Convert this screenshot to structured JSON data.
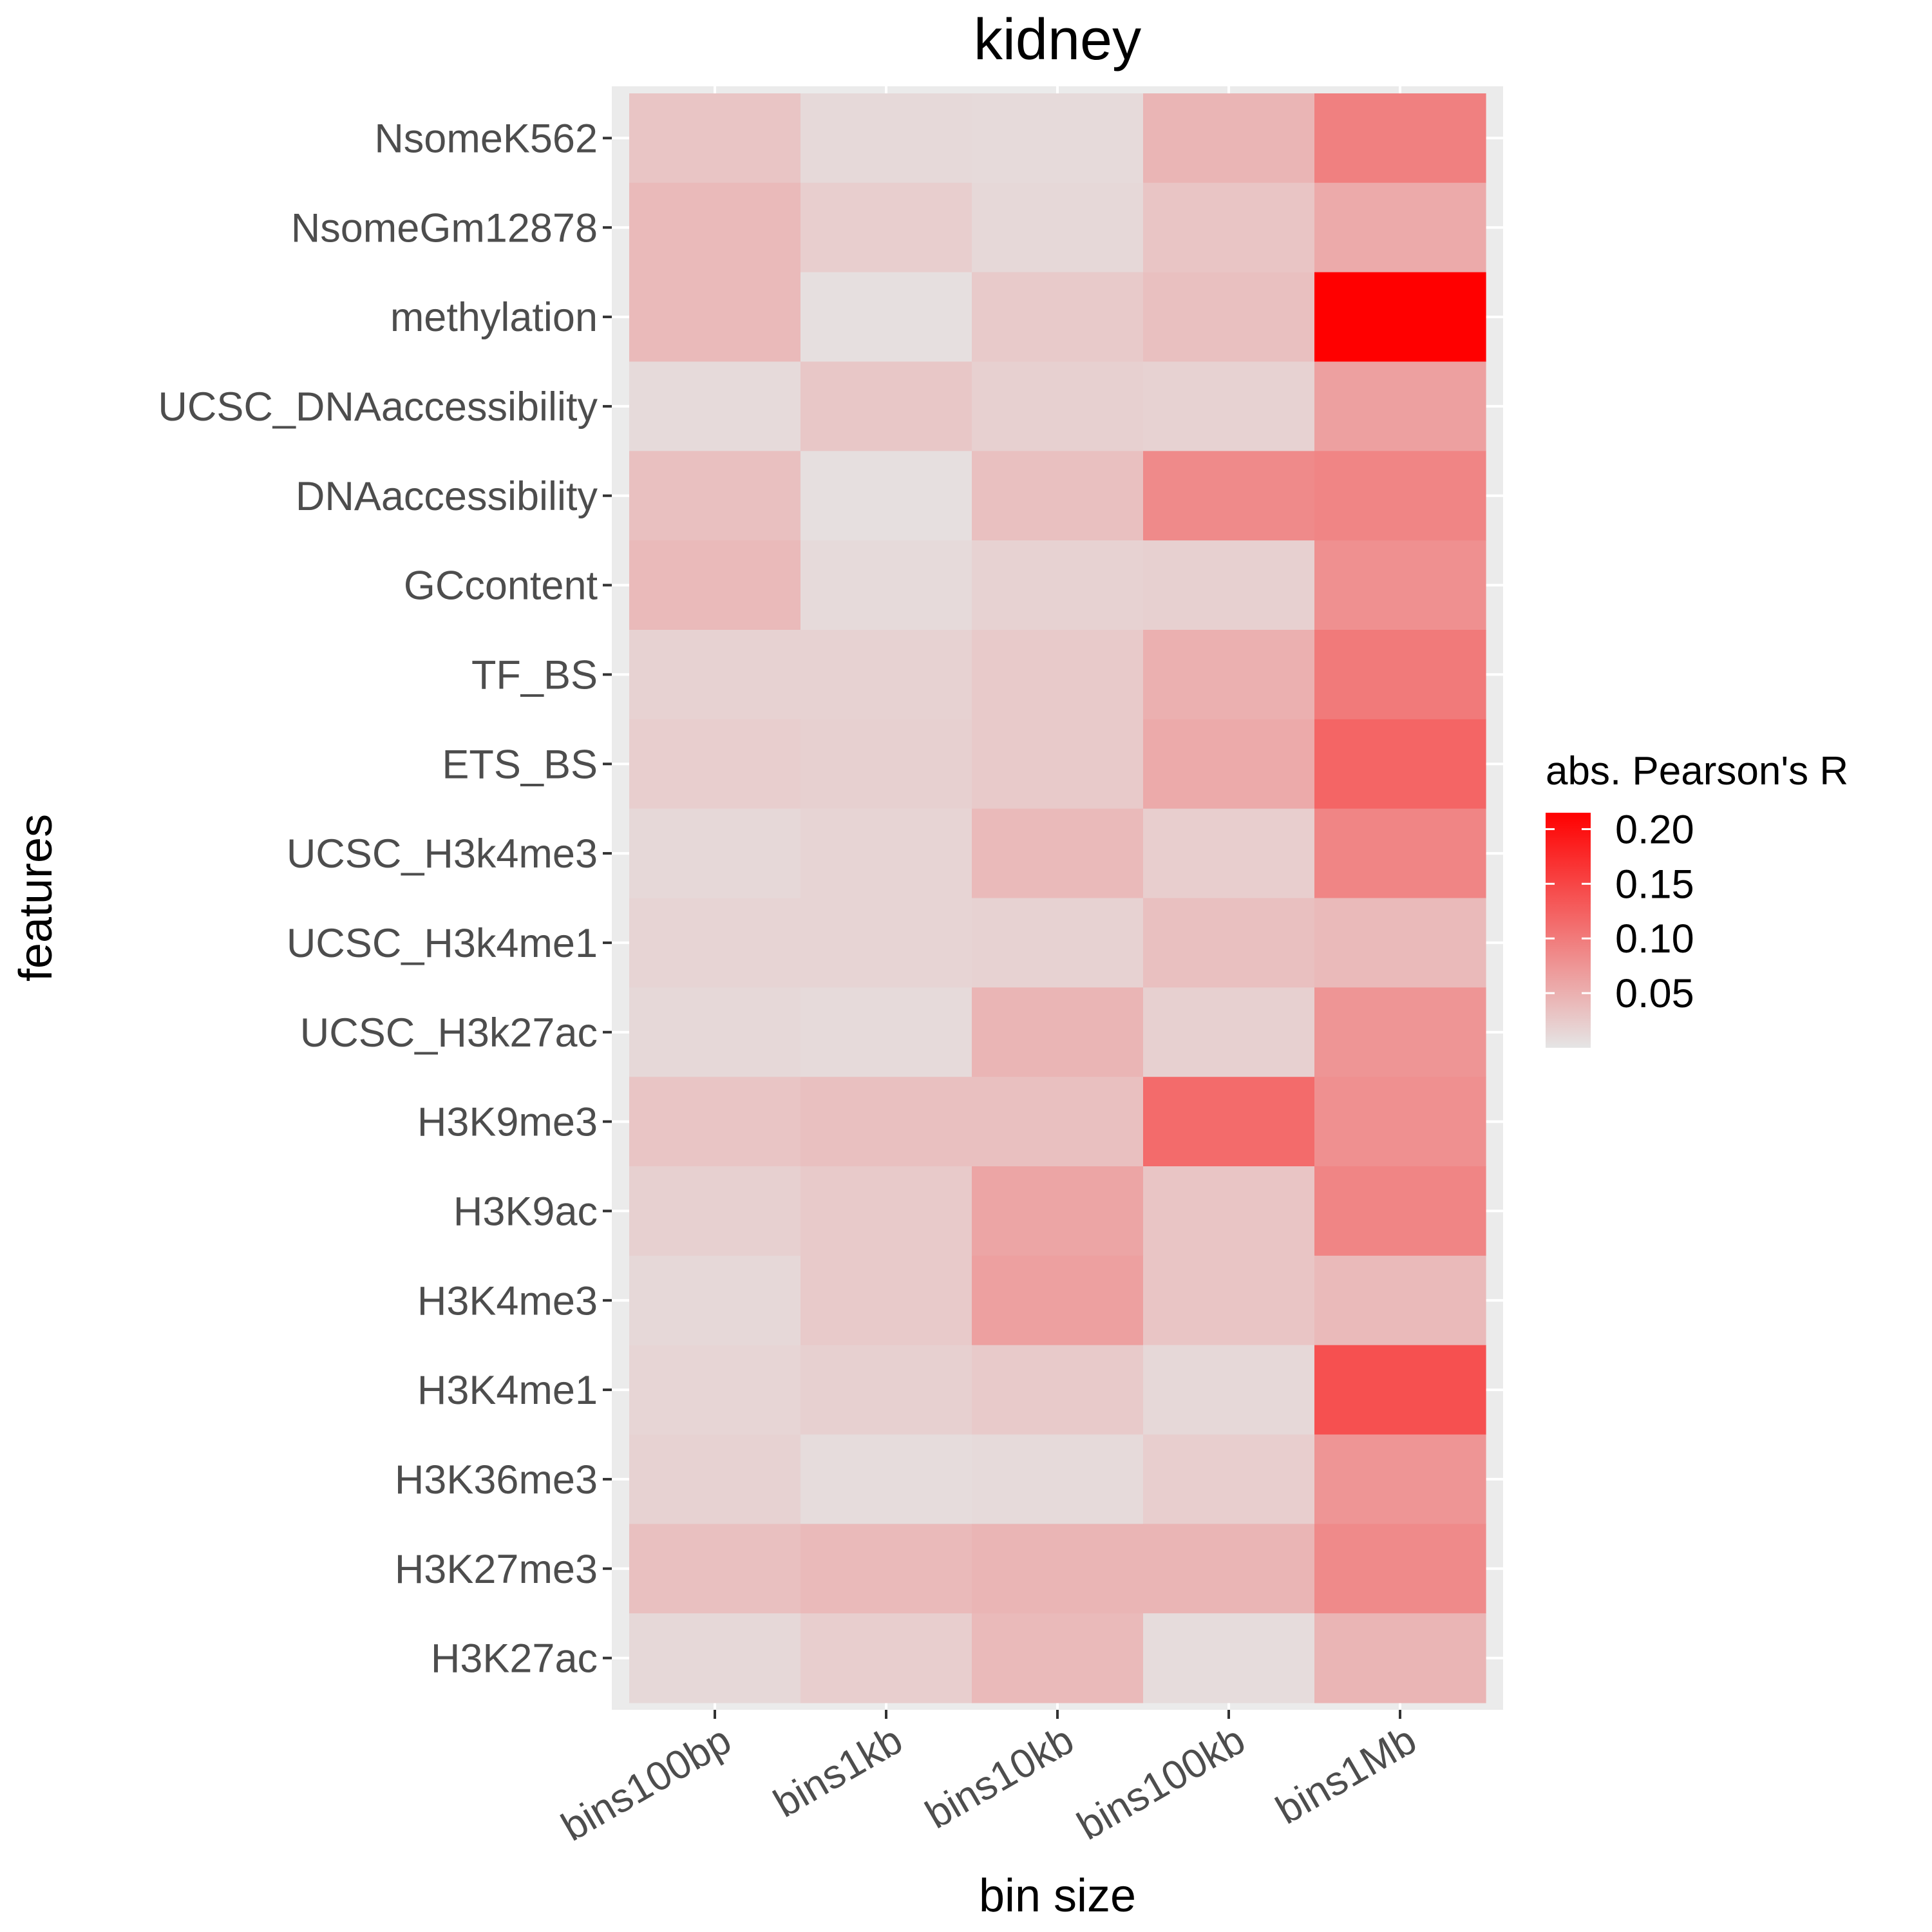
{
  "chart_data": {
    "type": "heatmap",
    "title": "kidney",
    "xlabel": "bin size",
    "ylabel": "features",
    "x_categories": [
      "bins100bp",
      "bins1kb",
      "bins10kb",
      "bins100kb",
      "bins1Mb"
    ],
    "y_categories": [
      "NsomeK562",
      "NsomeGm12878",
      "methylation",
      "UCSC_DNAaccessibility",
      "DNAaccessibility",
      "GCcontent",
      "TF_BS",
      "ETS_BS",
      "UCSC_H3k4me3",
      "UCSC_H3k4me1",
      "UCSC_H3k27ac",
      "H3K9me3",
      "H3K9ac",
      "H3K4me3",
      "H3K4me1",
      "H3K36me3",
      "H3K27me3",
      "H3K27ac"
    ],
    "values": [
      [
        0.03,
        0.011,
        0.01,
        0.045,
        0.095
      ],
      [
        0.04,
        0.022,
        0.012,
        0.03,
        0.055
      ],
      [
        0.04,
        0.006,
        0.025,
        0.035,
        0.215
      ],
      [
        0.01,
        0.028,
        0.02,
        0.018,
        0.065
      ],
      [
        0.035,
        0.006,
        0.035,
        0.085,
        0.09
      ],
      [
        0.04,
        0.01,
        0.018,
        0.02,
        0.08
      ],
      [
        0.018,
        0.018,
        0.025,
        0.05,
        0.1
      ],
      [
        0.022,
        0.02,
        0.025,
        0.055,
        0.12
      ],
      [
        0.012,
        0.016,
        0.04,
        0.022,
        0.09
      ],
      [
        0.016,
        0.016,
        0.018,
        0.035,
        0.04
      ],
      [
        0.012,
        0.01,
        0.045,
        0.02,
        0.075
      ],
      [
        0.03,
        0.035,
        0.035,
        0.115,
        0.08
      ],
      [
        0.02,
        0.025,
        0.06,
        0.03,
        0.09
      ],
      [
        0.012,
        0.025,
        0.065,
        0.03,
        0.04
      ],
      [
        0.015,
        0.02,
        0.025,
        0.012,
        0.14
      ],
      [
        0.018,
        0.008,
        0.01,
        0.022,
        0.075
      ],
      [
        0.035,
        0.04,
        0.045,
        0.045,
        0.085
      ],
      [
        0.012,
        0.022,
        0.04,
        0.008,
        0.045
      ]
    ],
    "color_scale": {
      "low": "#e5e5e5",
      "high": "#ff0000",
      "min": 0,
      "max": 0.215
    },
    "legend": {
      "title": "abs. Pearson's R",
      "ticks": [
        0.2,
        0.15,
        0.1,
        0.05
      ],
      "tick_labels": [
        "0.20",
        "0.15",
        "0.10",
        "0.05"
      ],
      "position": "right"
    },
    "panel_background": "#ebebeb",
    "grid": true
  }
}
